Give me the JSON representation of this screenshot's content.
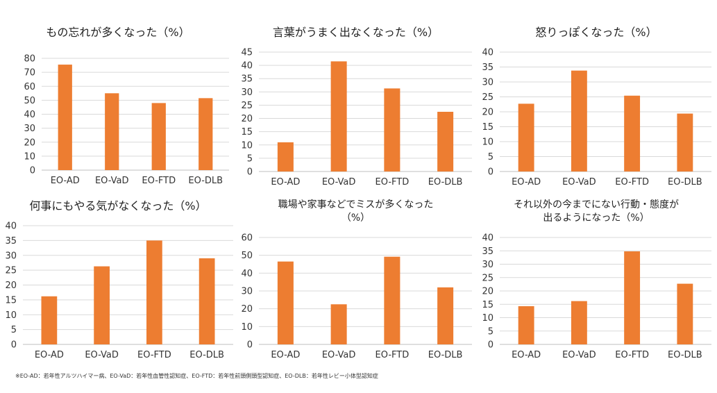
{
  "chart_data": [
    {
      "type": "bar",
      "title": "もの忘れが多くなった（%）",
      "categories": [
        "EO-AD",
        "EO-VaD",
        "EO-FTD",
        "EO-DLB"
      ],
      "values": [
        75.5,
        55,
        48,
        51.5
      ],
      "ylim": [
        0,
        80
      ],
      "ystep": 10,
      "color": "#ed7d31",
      "grid": true
    },
    {
      "type": "bar",
      "title": "言葉がうまく出なくなった（%）",
      "categories": [
        "EO-AD",
        "EO-VaD",
        "EO-FTD",
        "EO-DLB"
      ],
      "values": [
        11,
        41.5,
        31.3,
        22.5
      ],
      "ylim": [
        0,
        45
      ],
      "ystep": 5,
      "color": "#ed7d31",
      "grid": true
    },
    {
      "type": "bar",
      "title": "怒りっぽくなった（%）",
      "categories": [
        "EO-AD",
        "EO-VaD",
        "EO-FTD",
        "EO-DLB"
      ],
      "values": [
        22.7,
        33.8,
        25.4,
        19.4
      ],
      "ylim": [
        0,
        40
      ],
      "ystep": 5,
      "color": "#ed7d31",
      "grid": true
    },
    {
      "type": "bar",
      "title": "何事にもやる気がなくなった（%）",
      "categories": [
        "EO-AD",
        "EO-VaD",
        "EO-FTD",
        "EO-DLB"
      ],
      "values": [
        16.2,
        26.3,
        35,
        29
      ],
      "ylim": [
        0,
        40
      ],
      "ystep": 5,
      "color": "#ed7d31",
      "grid": true
    },
    {
      "type": "bar",
      "title": "職場や家事などでミスが多くなった（%）",
      "title_lines": [
        "職場や家事などでミスが多くなった",
        "（%）"
      ],
      "categories": [
        "EO-AD",
        "EO-VaD",
        "EO-FTD",
        "EO-DLB"
      ],
      "values": [
        46.5,
        22.5,
        49.2,
        32
      ],
      "ylim": [
        0,
        60
      ],
      "ystep": 10,
      "color": "#ed7d31",
      "grid": true
    },
    {
      "type": "bar",
      "title": "それ以外の今までにない行動・態度が出るようになった（%）",
      "title_lines": [
        "それ以外の今までにない行動・態度が",
        "出るようになった（%）"
      ],
      "categories": [
        "EO-AD",
        "EO-VaD",
        "EO-FTD",
        "EO-DLB"
      ],
      "values": [
        14.3,
        16.2,
        34.8,
        22.7
      ],
      "ylim": [
        0,
        40
      ],
      "ystep": 5,
      "color": "#ed7d31",
      "grid": true
    }
  ],
  "footnote": "※EO-AD：若年性アルツハイマー病、EO-VaD：若年性血管性認知症、EO-FTD：若年性前頭側頭型認知症、EO-DLB：若年性レビー小体型認知症"
}
